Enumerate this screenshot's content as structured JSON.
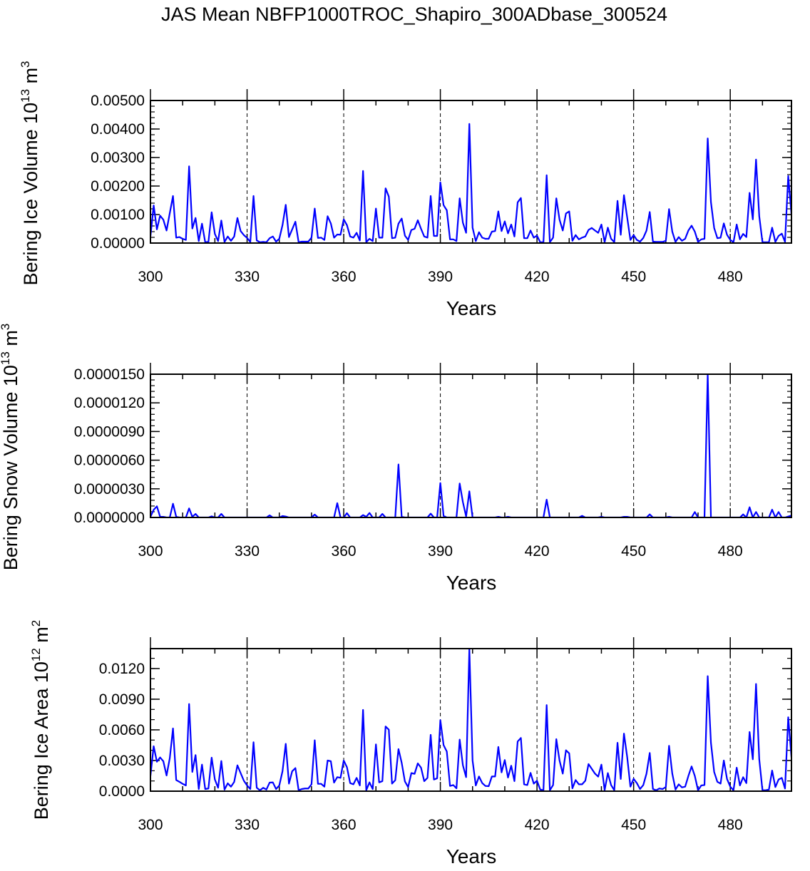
{
  "chart_data": {
    "type": "line",
    "title": "JAS Mean NBFP1000TROC_Shapiro_300ADbase_300524",
    "line_color": "#0000ff",
    "x": {
      "start": 300,
      "end": 499,
      "step": 1
    },
    "xlim": [
      300,
      499
    ],
    "xticks": [
      300,
      330,
      360,
      390,
      420,
      450,
      480
    ],
    "xtick_labels": [
      "300",
      "330",
      "360",
      "390",
      "420",
      "450",
      "480"
    ],
    "xminor_step": 10,
    "grid": "dashed vertical lines at major x ticks",
    "panels": [
      {
        "name": "ice-volume",
        "xlabel": "Years",
        "ylabel": {
          "text": "Bering Ice Volume 10",
          "exp": "13",
          "unit": " m",
          "unit_exp": "3"
        },
        "ylim": [
          0,
          0.005
        ],
        "yticks": [
          0,
          0.001,
          0.002,
          0.003,
          0.004,
          0.005
        ],
        "ytick_labels": [
          "0.00000",
          "0.00100",
          "0.00200",
          "0.00300",
          "0.00400",
          "0.00500"
        ],
        "yminor_step": 0.0002,
        "scale": 0.001,
        "values_scaled": [
          0.23,
          1.32,
          0.48,
          0.96,
          0.82,
          0.44,
          1.05,
          1.65,
          0.19,
          0.21,
          0.15,
          0.11,
          2.69,
          0.51,
          0.88,
          0.07,
          0.68,
          0.03,
          0.04,
          1.08,
          0.32,
          0.07,
          0.79,
          0.04,
          0.23,
          0.08,
          0.23,
          0.88,
          0.42,
          0.28,
          0.18,
          0.04,
          1.65,
          0.09,
          0.03,
          0.04,
          0.03,
          0.17,
          0.23,
          0.05,
          0.15,
          0.63,
          1.34,
          0.21,
          0.48,
          0.75,
          0.03,
          0.05,
          0.05,
          0.05,
          0.19,
          1.21,
          0.18,
          0.19,
          0.11,
          0.94,
          0.69,
          0.19,
          0.3,
          0.29,
          0.83,
          0.63,
          0.23,
          0.19,
          0.36,
          0.09,
          2.53,
          0.03,
          0.15,
          0.07,
          1.21,
          0.19,
          0.19,
          1.92,
          1.63,
          0.17,
          0.19,
          0.68,
          0.86,
          0.26,
          0.11,
          0.46,
          0.5,
          0.8,
          0.5,
          0.23,
          0.19,
          1.65,
          0.25,
          0.25,
          2.13,
          1.33,
          1.15,
          0.13,
          0.13,
          0.07,
          1.57,
          0.71,
          0.36,
          4.18,
          0.54,
          0.07,
          0.38,
          0.19,
          0.15,
          0.15,
          0.4,
          0.42,
          1.11,
          0.42,
          0.76,
          0.34,
          0.65,
          0.23,
          1.43,
          1.58,
          0.17,
          0.17,
          0.44,
          0.19,
          0.26,
          0.03,
          0.03,
          2.38,
          0.03,
          0.19,
          1.57,
          0.82,
          0.44,
          1.04,
          1.11,
          0.08,
          0.28,
          0.13,
          0.19,
          0.23,
          0.46,
          0.53,
          0.44,
          0.36,
          0.65,
          0.03,
          0.54,
          0.15,
          0.03,
          1.48,
          0.29,
          1.68,
          0.9,
          0.11,
          0.28,
          0.11,
          0.05,
          0.18,
          0.44,
          1.09,
          0.05,
          0.04,
          0.04,
          0.04,
          0.08,
          1.19,
          0.4,
          0.04,
          0.21,
          0.08,
          0.15,
          0.44,
          0.61,
          0.4,
          0.04,
          0.13,
          0.15,
          3.67,
          1.44,
          0.53,
          0.17,
          0.19,
          0.69,
          0.29,
          0.11,
          0.03,
          0.65,
          0.13,
          0.32,
          0.21,
          1.76,
          0.83,
          2.93,
          0.94,
          0.03,
          0.03,
          0.03,
          0.54,
          0.04,
          0.25,
          0.33,
          0.04,
          2.35,
          1.0
        ]
      },
      {
        "name": "snow-volume",
        "xlabel": "Years",
        "ylabel": {
          "text": "Bering Snow Volume 10",
          "exp": "13",
          "unit": " m",
          "unit_exp": "3"
        },
        "ylim": [
          0,
          1.5e-05
        ],
        "yticks": [
          0,
          3e-06,
          6e-06,
          9e-06,
          1.2e-05,
          1.5e-05
        ],
        "ytick_labels": [
          "0.0000000",
          "0.0000030",
          "0.0000060",
          "0.0000090",
          "0.0000120",
          "0.0000150"
        ],
        "yminor_step": 6e-07,
        "scale": 1e-06,
        "values_scaled": [
          0.07,
          0.8,
          1.17,
          0.07,
          0.07,
          0,
          0,
          1.44,
          0.07,
          0,
          0,
          0,
          0.95,
          0.07,
          0.37,
          0,
          0,
          0,
          0,
          0.12,
          0,
          0,
          0.37,
          0,
          0,
          0,
          0,
          0,
          0,
          0,
          0,
          0,
          0,
          0,
          0,
          0,
          0,
          0.22,
          0,
          0,
          0,
          0.15,
          0.1,
          0,
          0,
          0,
          0,
          0,
          0,
          0,
          0,
          0.3,
          0,
          0,
          0,
          0,
          0,
          0,
          1.5,
          0,
          0,
          0.45,
          0,
          0,
          0,
          0,
          0.25,
          0.07,
          0.47,
          0,
          0,
          0,
          0.37,
          0,
          0,
          0,
          0,
          5.55,
          0.07,
          0,
          0,
          0,
          0,
          0,
          0,
          0,
          0,
          0.4,
          0,
          0,
          3.6,
          0.17,
          0,
          0,
          0,
          0,
          3.56,
          1.6,
          0.1,
          2.74,
          0,
          0,
          0,
          0,
          0,
          0,
          0,
          0,
          0.07,
          0,
          0,
          0.07,
          0,
          0,
          0,
          0,
          0,
          0,
          0,
          0,
          0,
          0,
          0,
          1.87,
          0,
          0,
          0,
          0,
          0,
          0,
          0,
          0,
          0,
          0,
          0.17,
          0,
          0,
          0,
          0,
          0,
          0.07,
          0,
          0,
          0,
          0,
          0,
          0,
          0.07,
          0.07,
          0,
          0,
          0,
          0,
          0,
          0,
          0.32,
          0,
          0,
          0,
          0,
          0,
          0.07,
          0,
          0,
          0,
          0,
          0,
          0,
          0,
          0.57,
          0,
          0,
          0,
          15.0,
          0,
          0,
          0,
          0,
          0,
          0,
          0,
          0,
          0,
          0,
          0.32,
          0,
          1.07,
          0,
          0.57,
          0,
          0,
          0,
          0,
          0.82,
          0,
          0.57,
          0,
          0,
          0.1,
          0.2
        ]
      },
      {
        "name": "ice-area",
        "xlabel": "Years",
        "ylabel": {
          "text": "Bering Ice Area 10",
          "exp": "12",
          "unit": " m",
          "unit_exp": "2"
        },
        "ylim": [
          0,
          0.01395
        ],
        "yticks": [
          0,
          0.003,
          0.006,
          0.009,
          0.012
        ],
        "ytick_labels": [
          "0.0000",
          "0.0030",
          "0.0060",
          "0.0090",
          "0.0120"
        ],
        "yminor_step": 0.001,
        "scale": 0.001,
        "values_scaled": [
          1.49,
          4.4,
          2.88,
          3.3,
          2.93,
          1.53,
          3.23,
          6.14,
          1.09,
          0.91,
          0.72,
          0.56,
          8.53,
          1.88,
          3.53,
          0.21,
          2.6,
          0.21,
          0.26,
          3.28,
          1.14,
          0.33,
          2.95,
          0.16,
          0.77,
          0.44,
          0.91,
          2.53,
          1.77,
          1.02,
          0.56,
          0.21,
          4.79,
          0.33,
          0.09,
          0.33,
          0.16,
          0.84,
          0.86,
          0.21,
          0.56,
          1.95,
          4.63,
          0.74,
          1.95,
          2.26,
          0.09,
          0.21,
          0.26,
          0.26,
          0.67,
          4.98,
          0.72,
          0.72,
          0.44,
          3.0,
          2.93,
          0.84,
          1.37,
          1.3,
          3.0,
          2.35,
          0.79,
          0.67,
          1.3,
          0.56,
          7.95,
          0.09,
          0.86,
          0.21,
          4.58,
          0.86,
          0.98,
          6.33,
          6.02,
          0.74,
          1.07,
          4.12,
          2.77,
          0.95,
          0.4,
          1.77,
          1.7,
          2.72,
          2.3,
          0.98,
          1.3,
          5.51,
          1.14,
          1.26,
          6.95,
          4.51,
          3.88,
          0.51,
          0.6,
          0.28,
          5.05,
          2.53,
          1.37,
          13.93,
          3.0,
          0.56,
          1.44,
          0.79,
          0.51,
          0.49,
          1.44,
          1.44,
          4.33,
          1.84,
          3.05,
          1.33,
          2.49,
          0.98,
          4.86,
          5.21,
          0.67,
          0.6,
          1.79,
          0.74,
          1.02,
          0.16,
          0.09,
          8.42,
          0.09,
          0.6,
          5.09,
          3.0,
          1.72,
          4.0,
          3.7,
          0.28,
          1.09,
          0.67,
          0.67,
          1.02,
          2.65,
          2.19,
          1.72,
          1.42,
          2.6,
          0.09,
          1.77,
          0.6,
          0.09,
          4.74,
          1.19,
          5.63,
          3.35,
          0.44,
          1.21,
          0.79,
          0.21,
          0.6,
          1.72,
          3.74,
          0.21,
          0.09,
          0.26,
          0.21,
          0.4,
          4.44,
          1.72,
          0.16,
          0.67,
          0.37,
          0.44,
          1.49,
          2.42,
          1.49,
          0.09,
          0.56,
          0.6,
          11.26,
          4.74,
          1.88,
          0.91,
          0.74,
          3.0,
          1.19,
          0.44,
          0.09,
          2.3,
          0.56,
          1.37,
          0.79,
          5.79,
          3.12,
          10.49,
          3.12,
          0.09,
          0.09,
          0.16,
          2.02,
          0.4,
          1.14,
          1.3,
          0.26,
          7.23,
          3.3
        ]
      }
    ]
  }
}
